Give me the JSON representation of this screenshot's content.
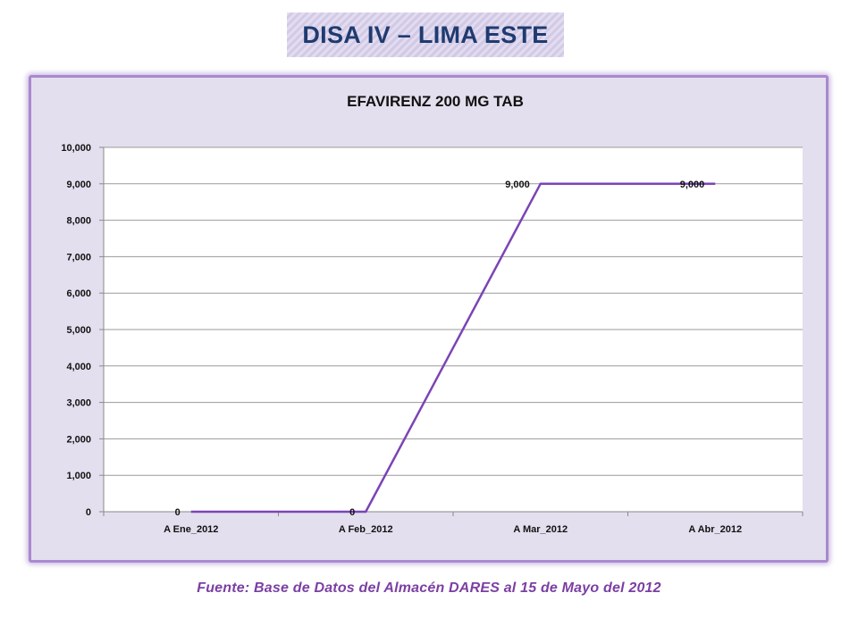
{
  "header": {
    "title": "DISA IV – LIMA ESTE"
  },
  "footer": {
    "source": "Fuente: Base de Datos del Almacén DARES al 15 de Mayo del 2012"
  },
  "colors": {
    "line": "#7b44b5",
    "panel_bg": "#e4dfee",
    "panel_border": "#a989cf",
    "title_color": "#1f3b70",
    "source_color": "#7b3fa3"
  },
  "chart_data": {
    "type": "line",
    "title": "EFAVIRENZ 200 MG TAB",
    "xlabel": "",
    "ylabel": "",
    "categories": [
      "A Ene_2012",
      "A Feb_2012",
      "A Mar_2012",
      "A Abr_2012"
    ],
    "series": [
      {
        "values": [
          0,
          0,
          9000,
          9000
        ],
        "data_labels": [
          "0",
          "0",
          "9,000",
          "9,000"
        ]
      }
    ],
    "ylim": [
      0,
      10000
    ],
    "yticks": [
      0,
      1000,
      2000,
      3000,
      4000,
      5000,
      6000,
      7000,
      8000,
      9000,
      10000
    ],
    "ytick_labels": [
      "0",
      "1,000",
      "2,000",
      "3,000",
      "4,000",
      "5,000",
      "6,000",
      "7,000",
      "8,000",
      "9,000",
      "10,000"
    ],
    "grid": true,
    "legend": "none"
  }
}
